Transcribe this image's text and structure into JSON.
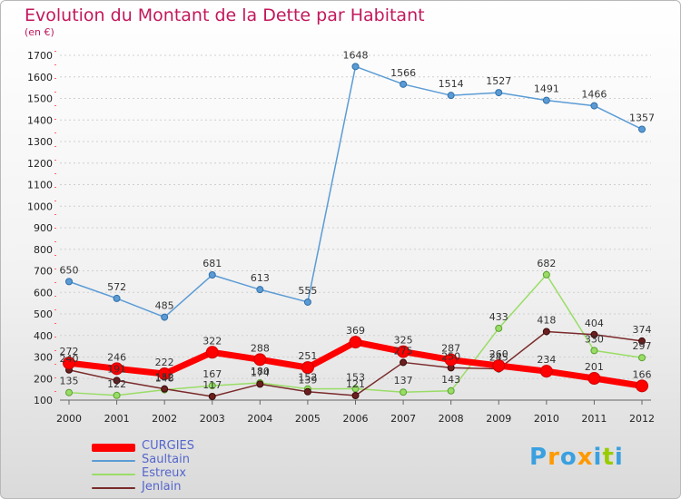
{
  "header": {
    "title": "Evolution du Montant de la Dette par Habitant",
    "subtitle": "(en €)"
  },
  "colors": {
    "title": "#c2185b",
    "CURGIES": "#ff0000",
    "Saultain": "#5b9bd5",
    "Estreux": "#99dd66",
    "Jenlain": "#7a2a2a"
  },
  "logo": {
    "text": "Proxiti",
    "colors": [
      "#3aa0e0",
      "#ff9900",
      "#3aa0e0",
      "#ff9900",
      "#3aa0e0",
      "#99cc00",
      "#3aa0e0"
    ]
  },
  "chart_data": {
    "type": "line",
    "title": "Evolution du Montant de la Dette par Habitant",
    "subtitle": "(en €)",
    "x": [
      "2000",
      "2001",
      "2002",
      "2003",
      "2004",
      "2005",
      "2006",
      "2007",
      "2008",
      "2009",
      "2010",
      "2011",
      "2012"
    ],
    "ylim": [
      100,
      1700
    ],
    "yticks": [
      100,
      200,
      300,
      400,
      500,
      600,
      700,
      800,
      900,
      1000,
      1100,
      1200,
      1300,
      1400,
      1500,
      1600,
      1700
    ],
    "grid": "horizontal dashed",
    "legend_position": "bottom-left",
    "series": [
      {
        "name": "CURGIES",
        "values": [
          272,
          246,
          222,
          322,
          288,
          251,
          369,
          325,
          287,
          260,
          234,
          201,
          166
        ]
      },
      {
        "name": "Saultain",
        "values": [
          650,
          572,
          485,
          681,
          613,
          555,
          1648,
          1566,
          1514,
          1527,
          1491,
          1466,
          1357
        ]
      },
      {
        "name": "Estreux",
        "values": [
          135,
          122,
          148,
          167,
          180,
          152,
          153,
          137,
          143,
          433,
          682,
          330,
          297
        ]
      },
      {
        "name": "Jenlain",
        "values": [
          240,
          191,
          152,
          117,
          174,
          139,
          121,
          275,
          250,
          245,
          418,
          404,
          374
        ]
      }
    ]
  }
}
